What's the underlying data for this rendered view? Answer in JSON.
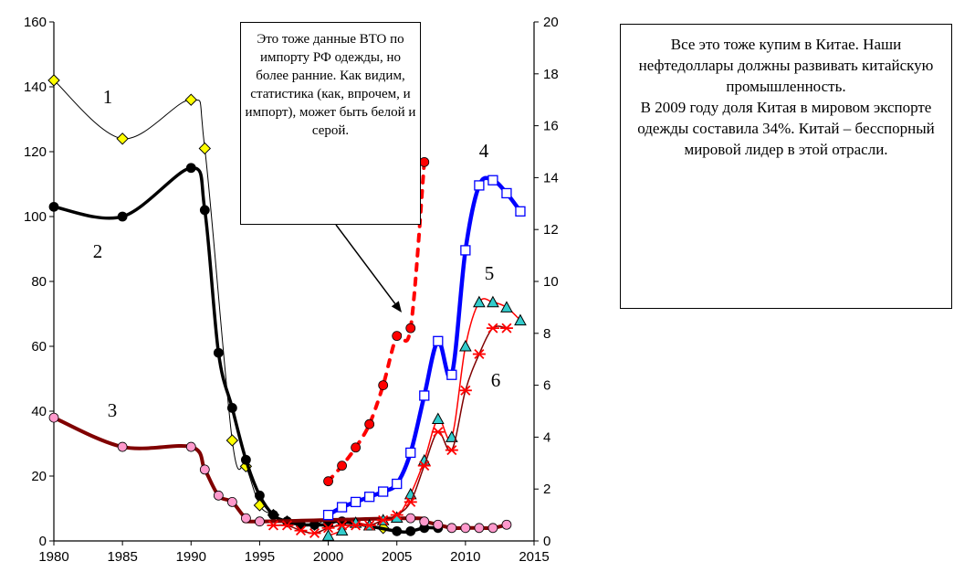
{
  "chart_data": {
    "type": "line",
    "x_axis": {
      "range": [
        1980,
        2015
      ],
      "ticks": [
        1980,
        1985,
        1990,
        1995,
        2000,
        2005,
        2010,
        2015
      ]
    },
    "y_left": {
      "range": [
        0,
        160
      ],
      "ticks": [
        0,
        20,
        40,
        60,
        80,
        100,
        120,
        140,
        160
      ]
    },
    "y_right": {
      "range": [
        0,
        20
      ],
      "ticks": [
        0,
        2,
        4,
        6,
        8,
        10,
        12,
        14,
        16,
        18,
        20
      ]
    },
    "grid": false,
    "series": [
      {
        "name": "1",
        "axis": "left",
        "color": "#000000",
        "marker": "diamond",
        "marker_fill": "#ffff00",
        "line_width": 1,
        "x": [
          1980,
          1985,
          1990,
          1991,
          1993,
          1994,
          1995,
          1996,
          1997,
          1999,
          2000,
          2004
        ],
        "y": [
          142,
          124,
          136,
          121,
          31,
          23,
          11,
          8,
          6,
          5,
          6,
          4
        ]
      },
      {
        "name": "2",
        "axis": "left",
        "color": "#000000",
        "marker": "circle",
        "marker_fill": "#000000",
        "line_width": 3.5,
        "x": [
          1980,
          1985,
          1990,
          1991,
          1992,
          1993,
          1994,
          1995,
          1996,
          1997,
          1998,
          1999,
          2000,
          2001,
          2005,
          2006,
          2007,
          2008
        ],
        "y": [
          103,
          100,
          115,
          102,
          58,
          41,
          25,
          14,
          8,
          6,
          5,
          5,
          5,
          6,
          3,
          3,
          4,
          4
        ]
      },
      {
        "name": "3",
        "axis": "left",
        "color": "#800000",
        "marker": "circle",
        "marker_fill": "#ff99cc",
        "line_width": 4,
        "x": [
          1980,
          1985,
          1990,
          1991,
          1992,
          1993,
          1994,
          1995,
          2006,
          2007,
          2008,
          2009,
          2010,
          2011,
          2012,
          2013
        ],
        "y": [
          38,
          29,
          29,
          22,
          14,
          12,
          7,
          6,
          7,
          6,
          5,
          4,
          4,
          4,
          4,
          5
        ]
      },
      {
        "name": "data-wto-red",
        "axis": "right",
        "color": "#ff0000",
        "marker": "circle",
        "marker_fill": "#ff0000",
        "line_width": 4,
        "dashed": true,
        "x": [
          2000,
          2001,
          2002,
          2003,
          2004,
          2005,
          2006,
          2007
        ],
        "y": [
          2.3,
          2.9,
          3.6,
          4.5,
          6.0,
          7.9,
          8.2,
          14.6
        ]
      },
      {
        "name": "4",
        "axis": "right",
        "color": "#0000ff",
        "marker": "square",
        "marker_fill": "#ffffff",
        "line_width": 4.5,
        "x": [
          2000,
          2001,
          2002,
          2003,
          2004,
          2005,
          2006,
          2007,
          2008,
          2009,
          2010,
          2011,
          2012,
          2013,
          2014
        ],
        "y": [
          1.0,
          1.3,
          1.5,
          1.7,
          1.9,
          2.2,
          3.4,
          5.6,
          7.7,
          6.4,
          11.2,
          13.7,
          13.9,
          13.4,
          12.7
        ]
      },
      {
        "name": "5",
        "axis": "right",
        "color": "#ff0000",
        "marker": "triangle",
        "marker_fill": "#33cccc",
        "line_width": 1.5,
        "x": [
          2000,
          2001,
          2002,
          2003,
          2004,
          2005,
          2006,
          2007,
          2008,
          2009,
          2010,
          2011,
          2012,
          2013,
          2014
        ],
        "y": [
          0.2,
          0.4,
          0.7,
          0.6,
          0.8,
          0.9,
          1.8,
          3.1,
          4.7,
          4.0,
          7.5,
          9.2,
          9.2,
          9.0,
          8.5
        ]
      },
      {
        "name": "6",
        "axis": "right",
        "color": "#800000",
        "marker": "star",
        "marker_fill": "#ff0000",
        "line_width": 1.5,
        "x": [
          1996,
          1997,
          1998,
          1999,
          2000,
          2001,
          2002,
          2003,
          2004,
          2005,
          2006,
          2007,
          2008,
          2009,
          2010,
          2011,
          2012,
          2013
        ],
        "y": [
          0.6,
          0.6,
          0.4,
          0.3,
          0.5,
          0.6,
          0.6,
          0.6,
          0.8,
          1.0,
          1.5,
          2.9,
          4.2,
          3.5,
          5.8,
          7.2,
          8.2,
          8.2
        ]
      }
    ],
    "series_labels": [
      "1",
      "2",
      "3",
      "4",
      "5",
      "6"
    ],
    "annotations": {
      "callout": "Это тоже данные ВТО по импорту РФ одежды, но более ранние. Как видим, статистика (как, впрочем, и импорт), может быть белой и серой."
    }
  },
  "note": {
    "lines": [
      "Все это тоже купим в Китае. Наши нефтедоллары должны развивать китайскую промышленность.",
      "В 2009 году доля Китая в мировом экспорте одежды составила 34%. Китай – бесспорный мировой  лидер в этой отрасли."
    ]
  }
}
